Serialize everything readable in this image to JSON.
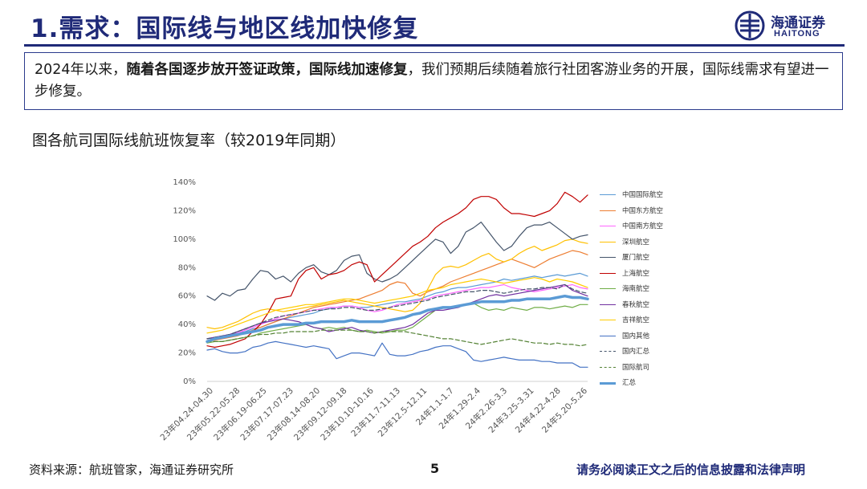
{
  "header": {
    "title": "1.需求：国际线与地区线加快修复",
    "logo_cn": "海通证券",
    "logo_en": "HAITONG"
  },
  "summary": {
    "part1": "2024年以来，",
    "part2_bold": "随着各国逐步放开签证政策，国际线加速修复",
    "part3": "，我们预期后续随着旅行社团客游业务的开展，国际线需求有望进一步修复。"
  },
  "figure_title": "图各航司国际线航班恢复率（较2019年同期）",
  "footer": {
    "source": "资料来源：航班管家，海通证券研究所",
    "page": "5",
    "disclaimer": "请务必阅读正文之后的信息披露和法律声明"
  },
  "chart_data": {
    "type": "line",
    "title": "",
    "xlabel": "",
    "ylabel": "",
    "ylim": [
      0,
      140
    ],
    "y_ticks": [
      "0%",
      "20%",
      "40%",
      "60%",
      "80%",
      "100%",
      "120%",
      "140%"
    ],
    "x_tick_labels": [
      "23年04.24-04.30",
      "23年05.22-05.28",
      "23年06.19-06.25",
      "23年07.17-07.23",
      "23年08.14-08.20",
      "23年09.12-09.18",
      "23年10.10-10.16",
      "23年11.7-11.13",
      "23年12.5-12.11",
      "24年1.1-1.7",
      "24年1.29-2.4",
      "24年2.26-3.3",
      "24年3.25-3.31",
      "24年4.22-4.28",
      "24年5.20-5.26"
    ],
    "legend_position": "right",
    "grid": false,
    "series": [
      {
        "name": "中国国际航空",
        "color": "#5b9bd5",
        "dash": "solid",
        "width": 1.2,
        "values": [
          30,
          31,
          32,
          33,
          34,
          35,
          37,
          38,
          40,
          42,
          44,
          45,
          46,
          47,
          48,
          50,
          51,
          52,
          53,
          53,
          52,
          52,
          53,
          54,
          55,
          56,
          56,
          57,
          58,
          60,
          62,
          63,
          65,
          66,
          66,
          67,
          68,
          69,
          70,
          72,
          71,
          72,
          73,
          74,
          73,
          74,
          75,
          74,
          75,
          76,
          74
        ]
      },
      {
        "name": "中国东方航空",
        "color": "#ed7d31",
        "dash": "solid",
        "width": 1.2,
        "values": [
          28,
          29,
          30,
          31,
          32,
          34,
          36,
          38,
          40,
          42,
          44,
          46,
          48,
          50,
          52,
          53,
          54,
          55,
          56,
          57,
          58,
          60,
          62,
          64,
          68,
          70,
          69,
          62,
          60,
          63,
          65,
          67,
          70,
          72,
          74,
          76,
          78,
          80,
          82,
          84,
          86,
          84,
          82,
          80,
          83,
          86,
          88,
          90,
          92,
          91,
          89
        ]
      },
      {
        "name": "中国南方航空",
        "color": "#ff66ff",
        "dash": "solid",
        "width": 1.2,
        "values": [
          30,
          31,
          32,
          33,
          34,
          36,
          38,
          40,
          42,
          44,
          46,
          47,
          48,
          49,
          50,
          51,
          52,
          52,
          53,
          53,
          52,
          50,
          49,
          50,
          52,
          54,
          55,
          56,
          57,
          58,
          60,
          61,
          62,
          63,
          64,
          65,
          66,
          66,
          67,
          68,
          66,
          65,
          64,
          63,
          64,
          65,
          66,
          67,
          68,
          66,
          65
        ]
      },
      {
        "name": "深圳航空",
        "color": "#ffc000",
        "dash": "solid",
        "width": 1.2,
        "values": [
          38,
          37,
          38,
          40,
          42,
          45,
          48,
          50,
          51,
          50,
          49,
          50,
          51,
          52,
          53,
          54,
          55,
          56,
          57,
          56,
          55,
          54,
          53,
          52,
          51,
          50,
          49,
          50,
          55,
          65,
          75,
          80,
          81,
          80,
          82,
          85,
          88,
          90,
          86,
          84,
          86,
          90,
          93,
          95,
          92,
          94,
          96,
          99,
          100,
          98,
          97
        ]
      },
      {
        "name": "厦门航空",
        "color": "#44546a",
        "dash": "solid",
        "width": 1.2,
        "values": [
          60,
          57,
          62,
          60,
          64,
          65,
          72,
          78,
          77,
          72,
          74,
          70,
          76,
          80,
          82,
          77,
          75,
          78,
          85,
          88,
          89,
          76,
          72,
          70,
          72,
          75,
          80,
          85,
          90,
          95,
          100,
          98,
          90,
          95,
          105,
          108,
          112,
          105,
          98,
          92,
          95,
          102,
          108,
          110,
          110,
          112,
          108,
          104,
          100,
          102,
          103
        ]
      },
      {
        "name": "上海航空",
        "color": "#c00000",
        "dash": "solid",
        "width": 1.2,
        "values": [
          25,
          24,
          25,
          26,
          28,
          30,
          35,
          40,
          48,
          58,
          59,
          60,
          72,
          78,
          80,
          72,
          75,
          76,
          78,
          82,
          84,
          82,
          70,
          75,
          80,
          85,
          90,
          95,
          98,
          102,
          108,
          112,
          115,
          118,
          122,
          128,
          130,
          130,
          128,
          122,
          118,
          118,
          117,
          116,
          118,
          120,
          125,
          133,
          130,
          126,
          131
        ]
      },
      {
        "name": "海南航空",
        "color": "#70ad47",
        "dash": "solid",
        "width": 1.2,
        "values": [
          27,
          28,
          28,
          29,
          30,
          31,
          32,
          34,
          35,
          36,
          37,
          38,
          39,
          40,
          38,
          37,
          38,
          37,
          38,
          36,
          35,
          36,
          35,
          34,
          35,
          36,
          36,
          38,
          42,
          46,
          50,
          52,
          52,
          53,
          54,
          55,
          52,
          50,
          51,
          50,
          52,
          51,
          50,
          52,
          52,
          51,
          52,
          53,
          52,
          54,
          54
        ]
      },
      {
        "name": "春秋航空",
        "color": "#7030a0",
        "dash": "solid",
        "width": 1.2,
        "values": [
          30,
          31,
          32,
          33,
          35,
          37,
          39,
          41,
          42,
          43,
          44,
          43,
          42,
          40,
          38,
          37,
          35,
          36,
          37,
          38,
          36,
          35,
          34,
          35,
          36,
          37,
          38,
          40,
          44,
          48,
          50,
          50,
          51,
          52,
          54,
          56,
          58,
          60,
          61,
          60,
          61,
          62,
          63,
          64,
          65,
          66,
          67,
          68,
          64,
          62,
          60
        ]
      },
      {
        "name": "吉祥航空",
        "color": "#ffcc00",
        "dash": "solid",
        "width": 1.2,
        "values": [
          34,
          35,
          36,
          38,
          40,
          42,
          44,
          46,
          48,
          50,
          51,
          52,
          53,
          54,
          54,
          55,
          56,
          57,
          58,
          58,
          57,
          56,
          55,
          56,
          57,
          58,
          59,
          60,
          62,
          64,
          65,
          66,
          68,
          69,
          70,
          71,
          72,
          71,
          70,
          69,
          70,
          71,
          72,
          73,
          72,
          70,
          72,
          71,
          70,
          68,
          66
        ]
      },
      {
        "name": "国内其他",
        "color": "#4472c4",
        "dash": "solid",
        "width": 1.2,
        "values": [
          22,
          23,
          21,
          20,
          20,
          21,
          24,
          25,
          27,
          28,
          27,
          26,
          25,
          24,
          25,
          24,
          23,
          16,
          18,
          20,
          20,
          19,
          18,
          27,
          19,
          18,
          18,
          19,
          21,
          22,
          24,
          25,
          25,
          23,
          21,
          15,
          14,
          15,
          16,
          17,
          16,
          15,
          15,
          15,
          14,
          14,
          13,
          13,
          13,
          10,
          10
        ]
      },
      {
        "name": "国内汇总",
        "color": "#44546a",
        "dash": "dash",
        "width": 1.2,
        "values": [
          30,
          31,
          32,
          33,
          35,
          37,
          39,
          41,
          43,
          45,
          46,
          47,
          48,
          49,
          50,
          50,
          51,
          51,
          52,
          52,
          51,
          50,
          50,
          51,
          52,
          53,
          54,
          55,
          56,
          57,
          59,
          60,
          61,
          62,
          63,
          63,
          64,
          64,
          63,
          62,
          63,
          64,
          65,
          65,
          66,
          66,
          65,
          68,
          65,
          63,
          62
        ]
      },
      {
        "name": "国际航司",
        "color": "#548235",
        "dash": "dash",
        "width": 1.2,
        "values": [
          28,
          28,
          28,
          29,
          30,
          31,
          32,
          33,
          33,
          34,
          34,
          35,
          35,
          35,
          35,
          36,
          36,
          36,
          36,
          36,
          35,
          35,
          34,
          35,
          35,
          35,
          35,
          34,
          33,
          32,
          31,
          30,
          30,
          29,
          28,
          27,
          26,
          27,
          28,
          29,
          30,
          29,
          28,
          27,
          27,
          26,
          27,
          26,
          26,
          25,
          26
        ]
      },
      {
        "name": "汇总",
        "color": "#5b9bd5",
        "dash": "solid",
        "width": 3.5,
        "values": [
          28,
          30,
          31,
          32,
          33,
          34,
          35,
          36,
          38,
          39,
          40,
          40,
          40,
          41,
          41,
          42,
          42,
          42,
          42,
          43,
          42,
          42,
          42,
          42,
          43,
          44,
          45,
          47,
          48,
          50,
          51,
          52,
          52,
          53,
          54,
          55,
          56,
          56,
          56,
          56,
          57,
          57,
          58,
          58,
          58,
          58,
          59,
          60,
          59,
          59,
          58
        ]
      }
    ]
  }
}
